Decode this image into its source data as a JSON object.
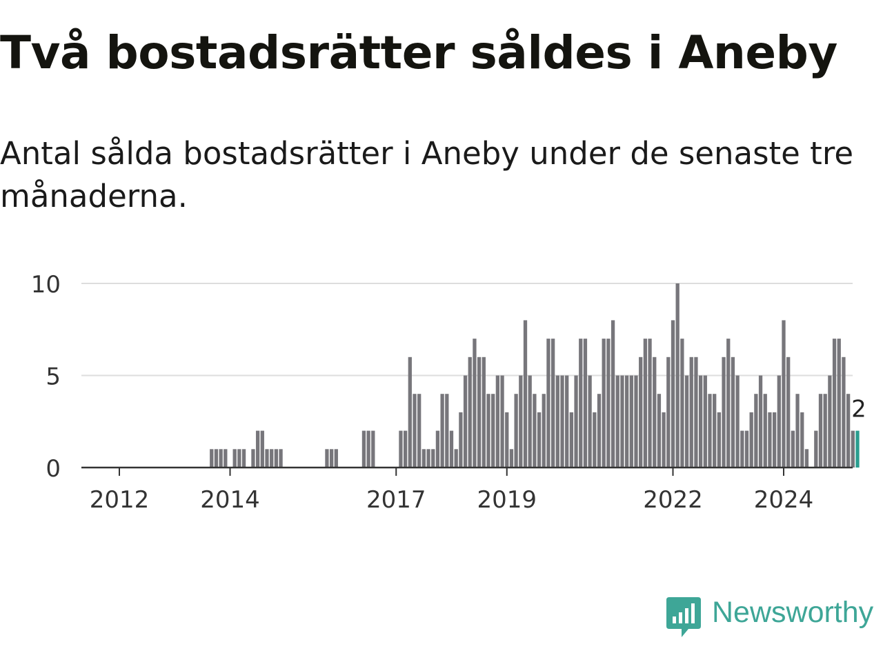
{
  "chart_data": {
    "type": "bar",
    "title": "Två bostadsrätter såldes i Aneby",
    "subtitle": "Antal sålda bostadsrätter i Aneby under de senaste tre månaderna.",
    "xlabel": "",
    "ylabel": "",
    "ylim": [
      0,
      10
    ],
    "yticks": [
      0,
      5,
      10
    ],
    "xticks": [
      "2012",
      "2014",
      "2017",
      "2019",
      "2022",
      "2024"
    ],
    "grid": true,
    "legend": "none",
    "start_year": 2011,
    "start_month": 1,
    "values": [
      0,
      0,
      0,
      0,
      0,
      0,
      0,
      0,
      0,
      0,
      0,
      0,
      0,
      0,
      0,
      0,
      0,
      0,
      0,
      0,
      0,
      0,
      0,
      0,
      0,
      0,
      0,
      0,
      0,
      0,
      0,
      0,
      1,
      1,
      1,
      1,
      0,
      1,
      1,
      1,
      0,
      1,
      2,
      2,
      1,
      1,
      1,
      1,
      0,
      0,
      0,
      0,
      0,
      0,
      0,
      0,
      0,
      1,
      1,
      1,
      0,
      0,
      0,
      0,
      0,
      2,
      2,
      2,
      0,
      0,
      0,
      0,
      0,
      2,
      2,
      6,
      4,
      4,
      1,
      1,
      1,
      2,
      4,
      4,
      2,
      1,
      3,
      5,
      6,
      7,
      6,
      6,
      4,
      4,
      5,
      5,
      3,
      1,
      4,
      5,
      8,
      5,
      4,
      3,
      4,
      7,
      7,
      5,
      5,
      5,
      3,
      5,
      7,
      7,
      5,
      3,
      4,
      7,
      7,
      8,
      5,
      5,
      5,
      5,
      5,
      6,
      7,
      7,
      6,
      4,
      3,
      6,
      8,
      10,
      7,
      5,
      6,
      6,
      5,
      5,
      4,
      4,
      3,
      6,
      7,
      6,
      5,
      2,
      2,
      3,
      4,
      5,
      4,
      3,
      3,
      5,
      8,
      6,
      2,
      4,
      3,
      1,
      0,
      2,
      4,
      4,
      5,
      7,
      7,
      6,
      4,
      2,
      2
    ],
    "highlight_color": "#2a9d8f",
    "bar_color": "#77767b",
    "value_label": "2"
  },
  "brand": {
    "name": "Newsworthy",
    "color": "#3ea697",
    "icon": "bar-chart-speech-bubble-icon"
  }
}
